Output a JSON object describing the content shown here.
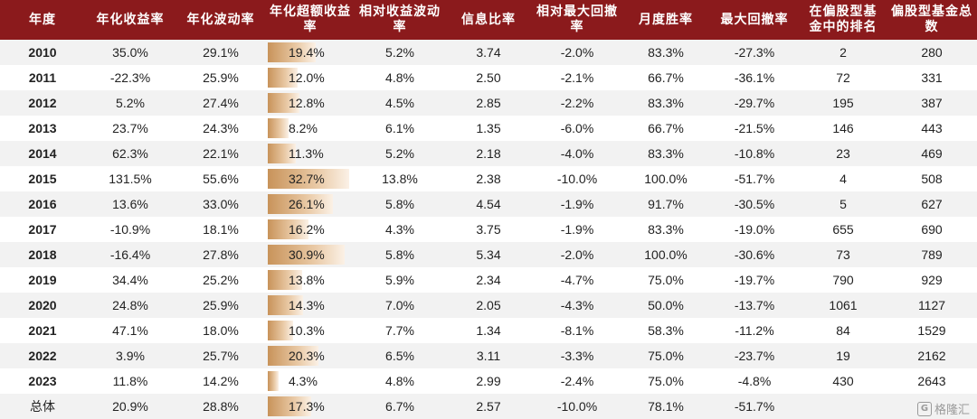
{
  "table": {
    "headers": [
      "年度",
      "年化收益率",
      "年化波动率",
      "年化超额收益率",
      "相对收益波动率",
      "信息比率",
      "相对最大回撤率",
      "月度胜率",
      "最大回撤率",
      "在偏股型基金中的排名",
      "偏股型基金总数"
    ],
    "bar_max": 32.7,
    "rows": [
      {
        "year": "2010",
        "ret": "35.0%",
        "vol": "29.1%",
        "excess": "19.4%",
        "excess_val": 19.4,
        "rel_vol": "5.2%",
        "ir": "3.74",
        "rel_dd": "-2.0%",
        "win": "83.3%",
        "max_dd": "-27.3%",
        "rank": "2",
        "total": "280"
      },
      {
        "year": "2011",
        "ret": "-22.3%",
        "vol": "25.9%",
        "excess": "12.0%",
        "excess_val": 12.0,
        "rel_vol": "4.8%",
        "ir": "2.50",
        "rel_dd": "-2.1%",
        "win": "66.7%",
        "max_dd": "-36.1%",
        "rank": "72",
        "total": "331"
      },
      {
        "year": "2012",
        "ret": "5.2%",
        "vol": "27.4%",
        "excess": "12.8%",
        "excess_val": 12.8,
        "rel_vol": "4.5%",
        "ir": "2.85",
        "rel_dd": "-2.2%",
        "win": "83.3%",
        "max_dd": "-29.7%",
        "rank": "195",
        "total": "387"
      },
      {
        "year": "2013",
        "ret": "23.7%",
        "vol": "24.3%",
        "excess": "8.2%",
        "excess_val": 8.2,
        "rel_vol": "6.1%",
        "ir": "1.35",
        "rel_dd": "-6.0%",
        "win": "66.7%",
        "max_dd": "-21.5%",
        "rank": "146",
        "total": "443"
      },
      {
        "year": "2014",
        "ret": "62.3%",
        "vol": "22.1%",
        "excess": "11.3%",
        "excess_val": 11.3,
        "rel_vol": "5.2%",
        "ir": "2.18",
        "rel_dd": "-4.0%",
        "win": "83.3%",
        "max_dd": "-10.8%",
        "rank": "23",
        "total": "469"
      },
      {
        "year": "2015",
        "ret": "131.5%",
        "vol": "55.6%",
        "excess": "32.7%",
        "excess_val": 32.7,
        "rel_vol": "13.8%",
        "ir": "2.38",
        "rel_dd": "-10.0%",
        "win": "100.0%",
        "max_dd": "-51.7%",
        "rank": "4",
        "total": "508"
      },
      {
        "year": "2016",
        "ret": "13.6%",
        "vol": "33.0%",
        "excess": "26.1%",
        "excess_val": 26.1,
        "rel_vol": "5.8%",
        "ir": "4.54",
        "rel_dd": "-1.9%",
        "win": "91.7%",
        "max_dd": "-30.5%",
        "rank": "5",
        "total": "627"
      },
      {
        "year": "2017",
        "ret": "-10.9%",
        "vol": "18.1%",
        "excess": "16.2%",
        "excess_val": 16.2,
        "rel_vol": "4.3%",
        "ir": "3.75",
        "rel_dd": "-1.9%",
        "win": "83.3%",
        "max_dd": "-19.0%",
        "rank": "655",
        "total": "690"
      },
      {
        "year": "2018",
        "ret": "-16.4%",
        "vol": "27.8%",
        "excess": "30.9%",
        "excess_val": 30.9,
        "rel_vol": "5.8%",
        "ir": "5.34",
        "rel_dd": "-2.0%",
        "win": "100.0%",
        "max_dd": "-30.6%",
        "rank": "73",
        "total": "789"
      },
      {
        "year": "2019",
        "ret": "34.4%",
        "vol": "25.2%",
        "excess": "13.8%",
        "excess_val": 13.8,
        "rel_vol": "5.9%",
        "ir": "2.34",
        "rel_dd": "-4.7%",
        "win": "75.0%",
        "max_dd": "-19.7%",
        "rank": "790",
        "total": "929"
      },
      {
        "year": "2020",
        "ret": "24.8%",
        "vol": "25.9%",
        "excess": "14.3%",
        "excess_val": 14.3,
        "rel_vol": "7.0%",
        "ir": "2.05",
        "rel_dd": "-4.3%",
        "win": "50.0%",
        "max_dd": "-13.7%",
        "rank": "1061",
        "total": "1127"
      },
      {
        "year": "2021",
        "ret": "47.1%",
        "vol": "18.0%",
        "excess": "10.3%",
        "excess_val": 10.3,
        "rel_vol": "7.7%",
        "ir": "1.34",
        "rel_dd": "-8.1%",
        "win": "58.3%",
        "max_dd": "-11.2%",
        "rank": "84",
        "total": "1529"
      },
      {
        "year": "2022",
        "ret": "3.9%",
        "vol": "25.7%",
        "excess": "20.3%",
        "excess_val": 20.3,
        "rel_vol": "6.5%",
        "ir": "3.11",
        "rel_dd": "-3.3%",
        "win": "75.0%",
        "max_dd": "-23.7%",
        "rank": "19",
        "total": "2162"
      },
      {
        "year": "2023",
        "ret": "11.8%",
        "vol": "14.2%",
        "excess": "4.3%",
        "excess_val": 4.3,
        "rel_vol": "4.8%",
        "ir": "2.99",
        "rel_dd": "-2.4%",
        "win": "75.0%",
        "max_dd": "-4.8%",
        "rank": "430",
        "total": "2643"
      },
      {
        "year": "总体",
        "ret": "20.9%",
        "vol": "28.8%",
        "excess": "17.3%",
        "excess_val": 17.3,
        "rel_vol": "6.7%",
        "ir": "2.57",
        "rel_dd": "-10.0%",
        "win": "78.1%",
        "max_dd": "-51.7%",
        "rank": "",
        "total": ""
      }
    ]
  },
  "watermark": {
    "logo": "G",
    "text": "格隆汇"
  }
}
